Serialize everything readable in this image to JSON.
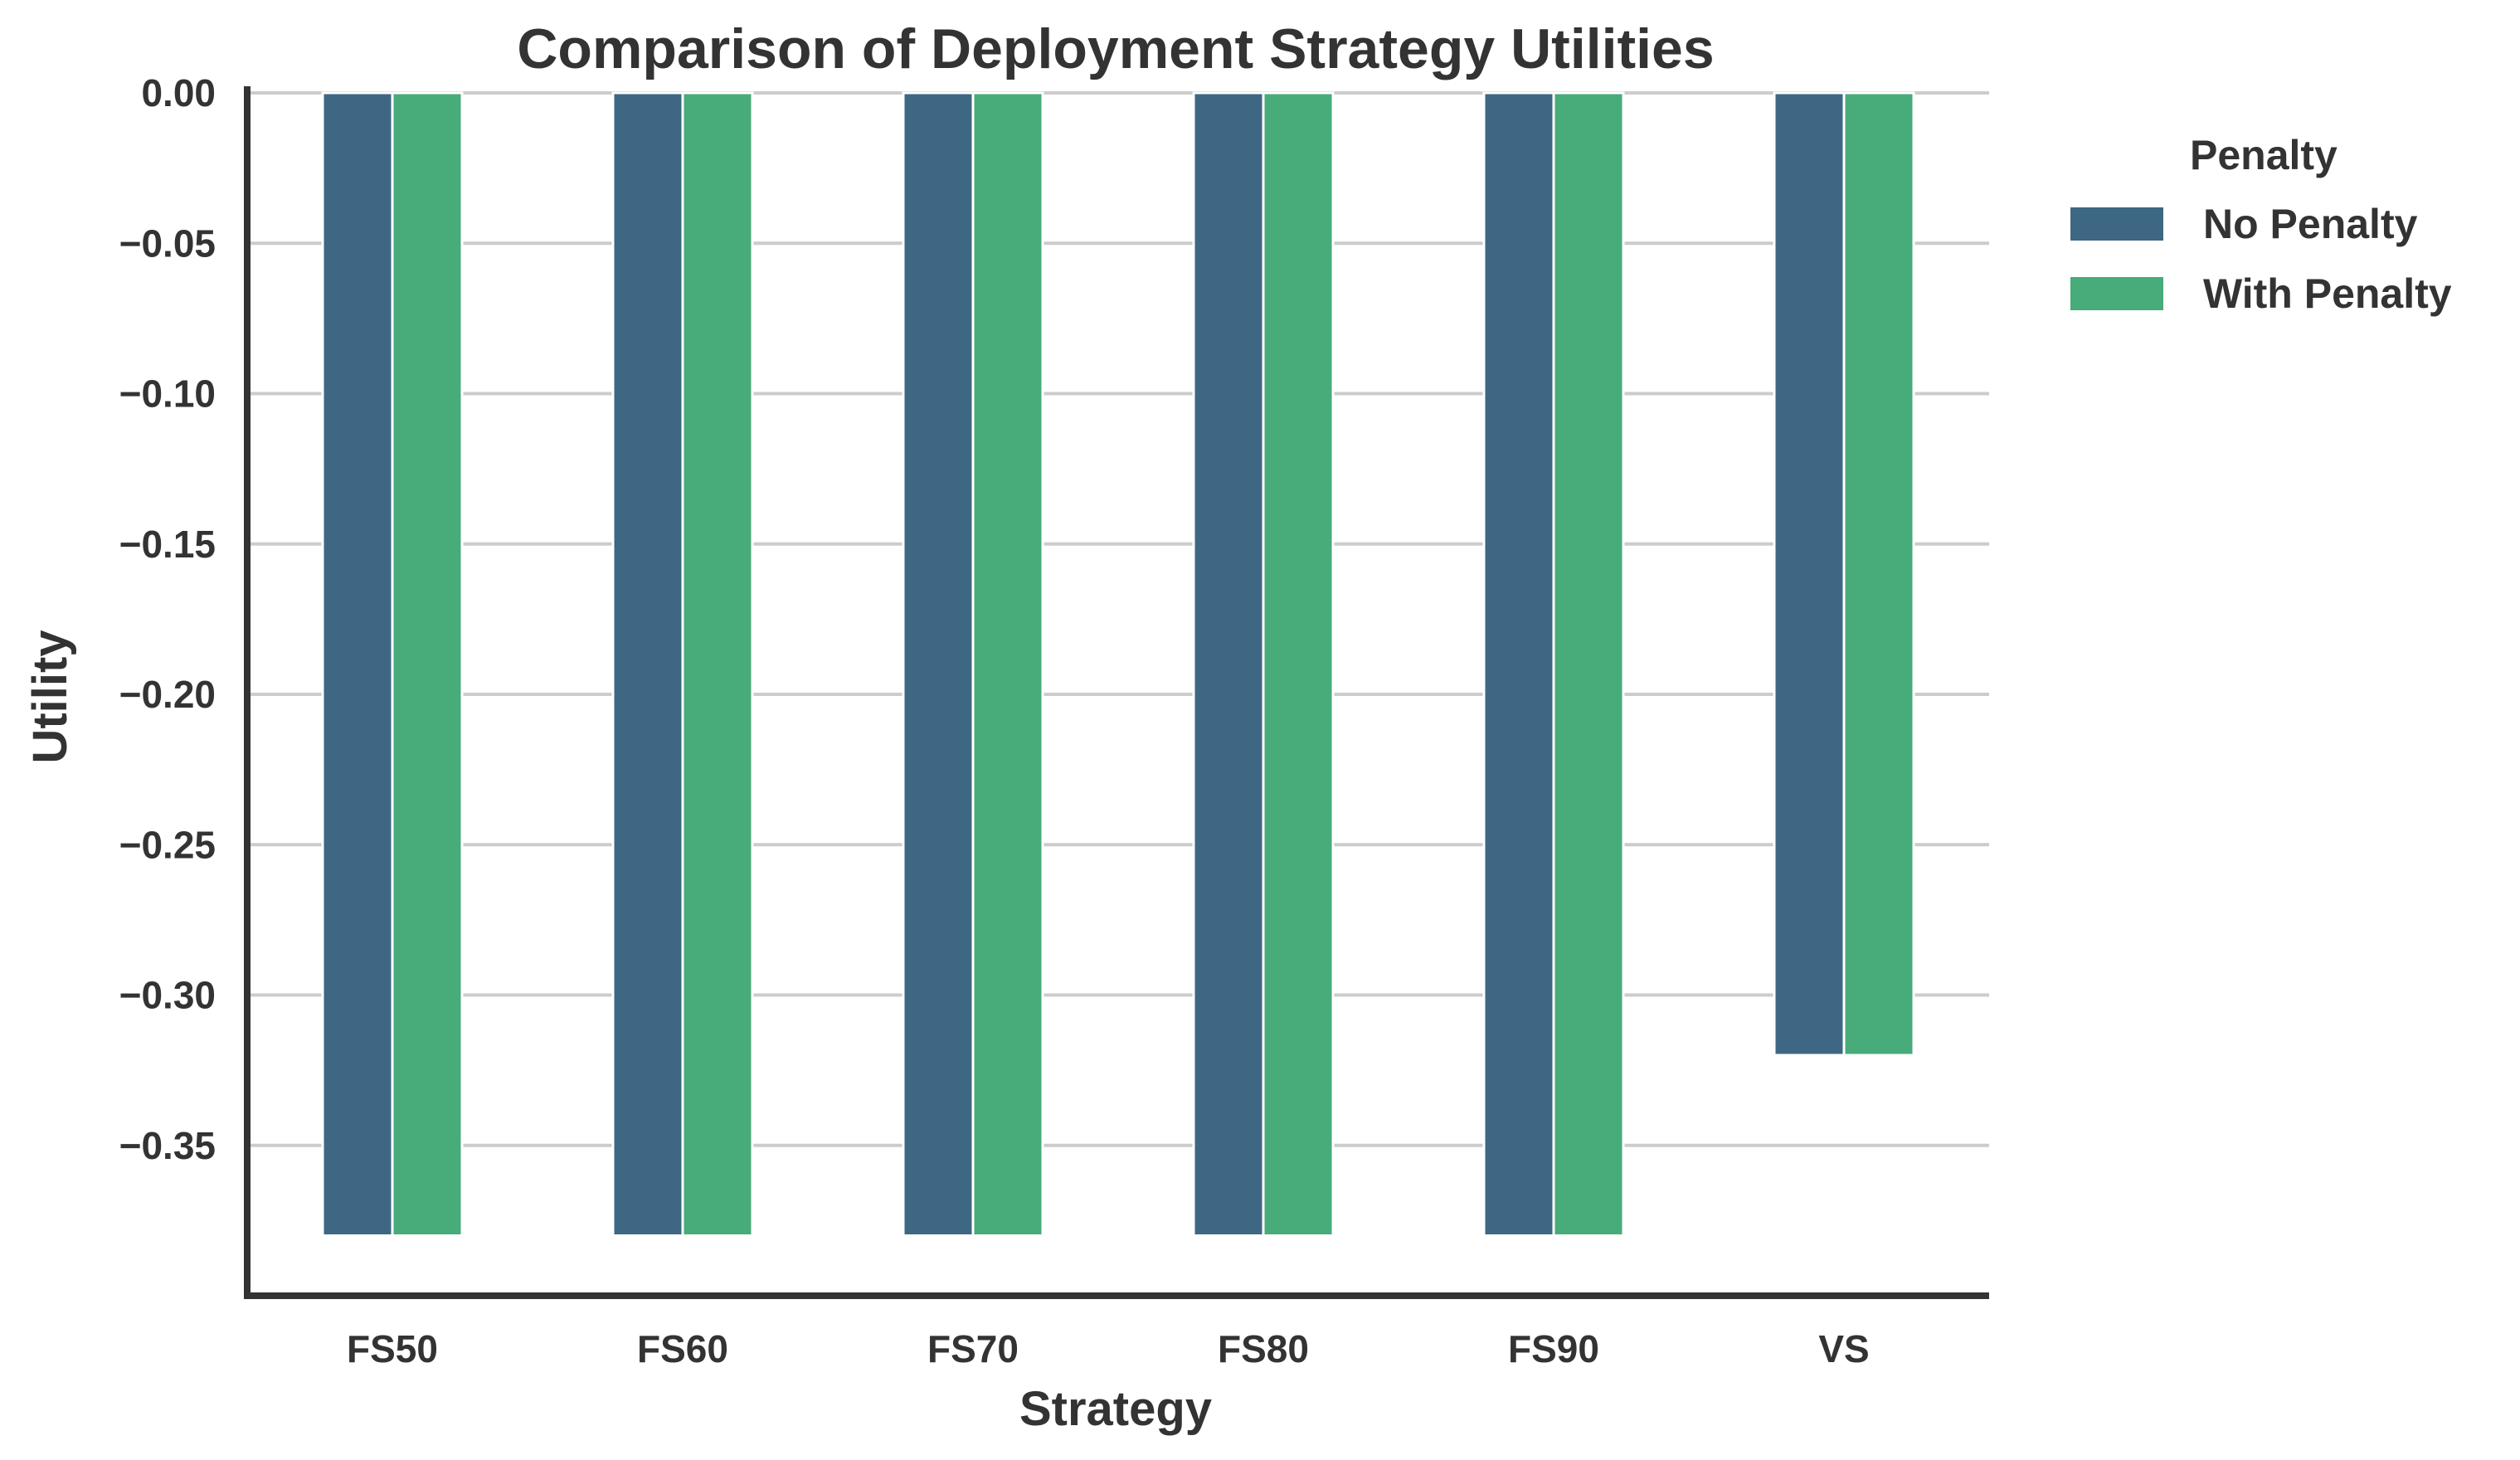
{
  "chart_data": {
    "type": "bar",
    "title": "Comparison of Deployment Strategy Utilities",
    "xlabel": "Strategy",
    "ylabel": "Utility",
    "categories": [
      "FS50",
      "FS60",
      "FS70",
      "FS80",
      "FS90",
      "VS"
    ],
    "series": [
      {
        "name": "No Penalty",
        "color": "#3e6783",
        "values": [
          -0.38,
          -0.38,
          -0.38,
          -0.38,
          -0.38,
          -0.32
        ]
      },
      {
        "name": "With Penalty",
        "color": "#47ab7a",
        "values": [
          -0.38,
          -0.38,
          -0.38,
          -0.38,
          -0.38,
          -0.32
        ]
      }
    ],
    "ylim": [
      -0.4,
      0.0
    ],
    "yticks": [
      0.0,
      -0.05,
      -0.1,
      -0.15,
      -0.2,
      -0.25,
      -0.3,
      -0.35
    ],
    "ytick_labels": [
      "0.00",
      "−0.05",
      "−0.10",
      "−0.15",
      "−0.20",
      "−0.25",
      "−0.30",
      "−0.35"
    ],
    "grid": true,
    "legend": {
      "title": "Penalty",
      "position": "outside-right-top"
    }
  }
}
